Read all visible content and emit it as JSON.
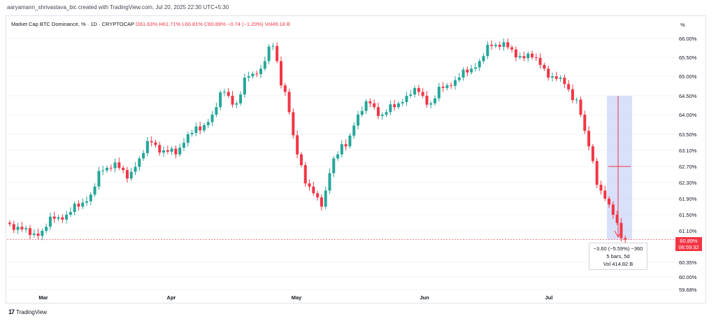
{
  "header": {
    "text": "aaryamann_shrivastava_bic created with TradingView.com, Jul 20, 2025 22:30 UTC+5:30"
  },
  "info": {
    "symbol": "Market Cap BTC Dominance, % · 1D · CRYPTOCAP",
    "open": "O61.63%",
    "high": "H61.71%",
    "low": "L60.81%",
    "close": "C60.89%",
    "change": "−0.74 (−1.20%)",
    "volume": "Vol49.18 B"
  },
  "axis_unit": "%",
  "price_tag": {
    "price": "60.89%",
    "countdown": "06:59:32"
  },
  "tooltip": {
    "line1": "−3.60 (−5.59%) −360",
    "line2": "5 bars, 5d",
    "line3": "Vol 414.82 B"
  },
  "footer": {
    "brand": "TradingView"
  },
  "colors": {
    "up": "#26a69a",
    "down": "#f23645",
    "measure_fill": "#c9d3f7",
    "grid": "#f0f3fa"
  },
  "chart_data": {
    "type": "candlestick",
    "title": "Market Cap BTC Dominance, % · 1D · CRYPTOCAP",
    "y_ticks": [
      "66.00%",
      "65.50%",
      "65.00%",
      "64.50%",
      "64.00%",
      "63.50%",
      "63.10%",
      "62.70%",
      "62.30%",
      "61.90%",
      "61.50%",
      "61.10%",
      "60.35%",
      "60.00%",
      "59.68%"
    ],
    "x_labels": [
      "Mar",
      "Apr",
      "May",
      "Jun",
      "Jul"
    ],
    "close_series": [
      61.2,
      61.0,
      61.1,
      61.4,
      61.5,
      61.7,
      62.0,
      62.6,
      62.8,
      62.4,
      62.9,
      63.3,
      63.1,
      63.0,
      63.5,
      63.6,
      64.0,
      64.6,
      64.3,
      65.0,
      65.2,
      65.8,
      64.6,
      63.0,
      62.2,
      61.7,
      62.9,
      63.2,
      64.0,
      64.3,
      64.0,
      64.2,
      64.5,
      64.6,
      64.3,
      64.7,
      64.9,
      65.1,
      65.4,
      65.8,
      65.9,
      65.5,
      65.6,
      65.3,
      65.0,
      64.8,
      64.4,
      63.2,
      62.1,
      61.5,
      60.89
    ],
    "last_close": 60.89,
    "grid": true
  }
}
